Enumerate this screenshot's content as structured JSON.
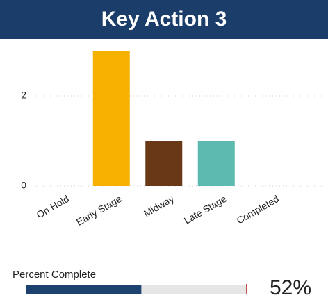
{
  "chart_data": {
    "type": "bar",
    "title": "Key Action 3",
    "categories": [
      "On Hold",
      "Early Stage",
      "Midway",
      "Late Stage",
      "Completed"
    ],
    "values": [
      0,
      3,
      1,
      1,
      0
    ],
    "colors": {
      "Early Stage": "#f5b000",
      "Midway": "#683817",
      "Late Stage": "#5cbab0"
    },
    "ylim": [
      0,
      3.1
    ],
    "yticks": [
      0,
      2
    ],
    "grid": true
  },
  "progress": {
    "label": "Percent Complete",
    "value": 52,
    "value_label": "52%",
    "lim": [
      0,
      100
    ],
    "color": "#1d426f"
  }
}
